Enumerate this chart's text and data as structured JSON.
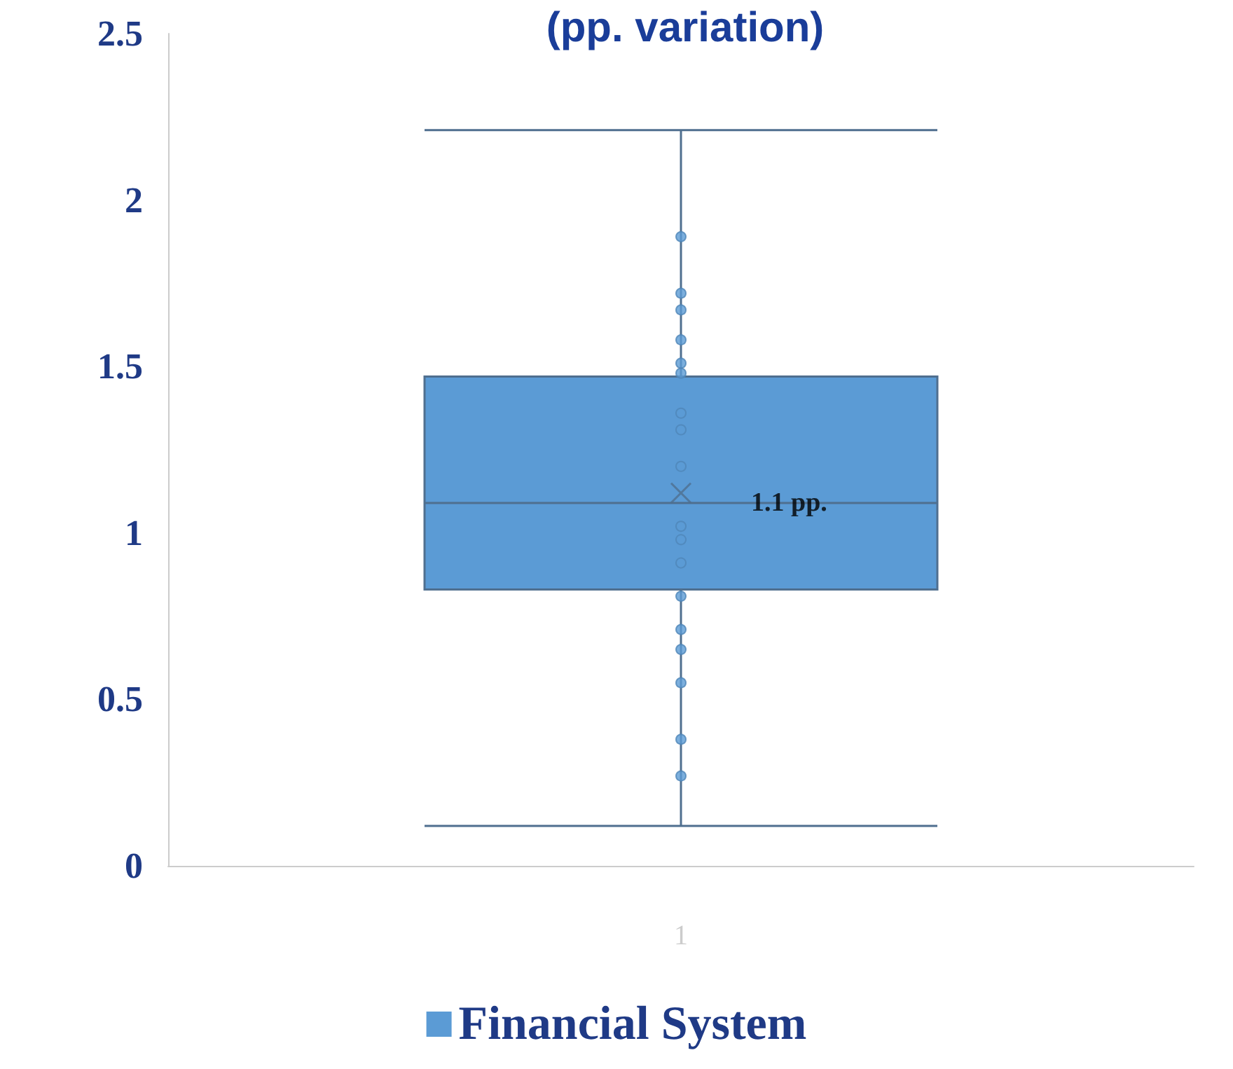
{
  "chart_data": {
    "type": "box",
    "title": "(pp. variation)",
    "categories": [
      "1"
    ],
    "series": [
      {
        "name": "Financial System",
        "color": "#5b9bd5",
        "boxes": [
          {
            "low": 0.12,
            "q1": 0.83,
            "median": 1.09,
            "q3": 1.47,
            "high": 2.21,
            "mean": 1.12
          }
        ]
      },
      {
        "type": "scatter",
        "color": "#5b9bd5",
        "x": [
          "1",
          "1",
          "1",
          "1",
          "1",
          "1",
          "1",
          "1",
          "1",
          "1",
          "1",
          "1",
          "1",
          "1",
          "1",
          "1",
          "1",
          "1"
        ],
        "values": [
          1.89,
          1.72,
          1.67,
          1.58,
          1.51,
          1.48,
          1.36,
          1.31,
          1.2,
          1.02,
          0.98,
          0.91,
          0.81,
          0.71,
          0.65,
          0.55,
          0.38,
          0.27
        ]
      }
    ],
    "annotations": [
      {
        "text": "1.1 pp.",
        "x": "1",
        "y": 1.09
      }
    ],
    "ylim": [
      0,
      2.5
    ],
    "yticks": [
      0,
      0.5,
      1,
      1.5,
      2,
      2.5
    ],
    "grid": false,
    "legend": "bottom"
  }
}
